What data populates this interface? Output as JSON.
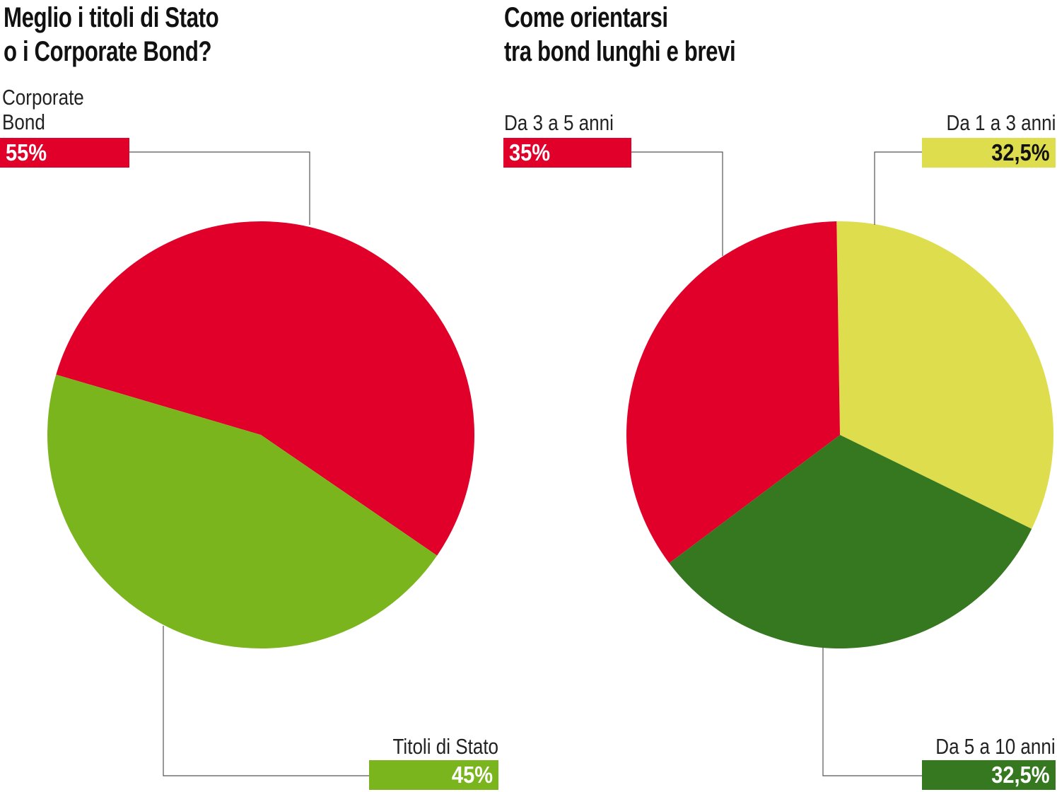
{
  "chart_data": [
    {
      "type": "pie",
      "title": [
        "Meglio i titoli di Stato",
        "o i Corporate Bond?"
      ],
      "categories": [
        "Corporate Bond",
        "Titoli di Stato"
      ],
      "values": [
        55,
        45
      ],
      "value_labels": [
        "55%",
        "45%"
      ],
      "colors": [
        "#e0002a",
        "#7ab51d"
      ]
    },
    {
      "type": "pie",
      "title": [
        "Come orientarsi",
        "tra bond lunghi e brevi"
      ],
      "categories": [
        "Da 1 a 3 anni",
        "Da 5 a 10 anni",
        "Da 3 a 5 anni"
      ],
      "values": [
        32.5,
        32.5,
        35
      ],
      "value_labels": [
        "32,5%",
        "32,5%",
        "35%"
      ],
      "colors": [
        "#dedd4d",
        "#367820",
        "#e0002a"
      ]
    }
  ]
}
